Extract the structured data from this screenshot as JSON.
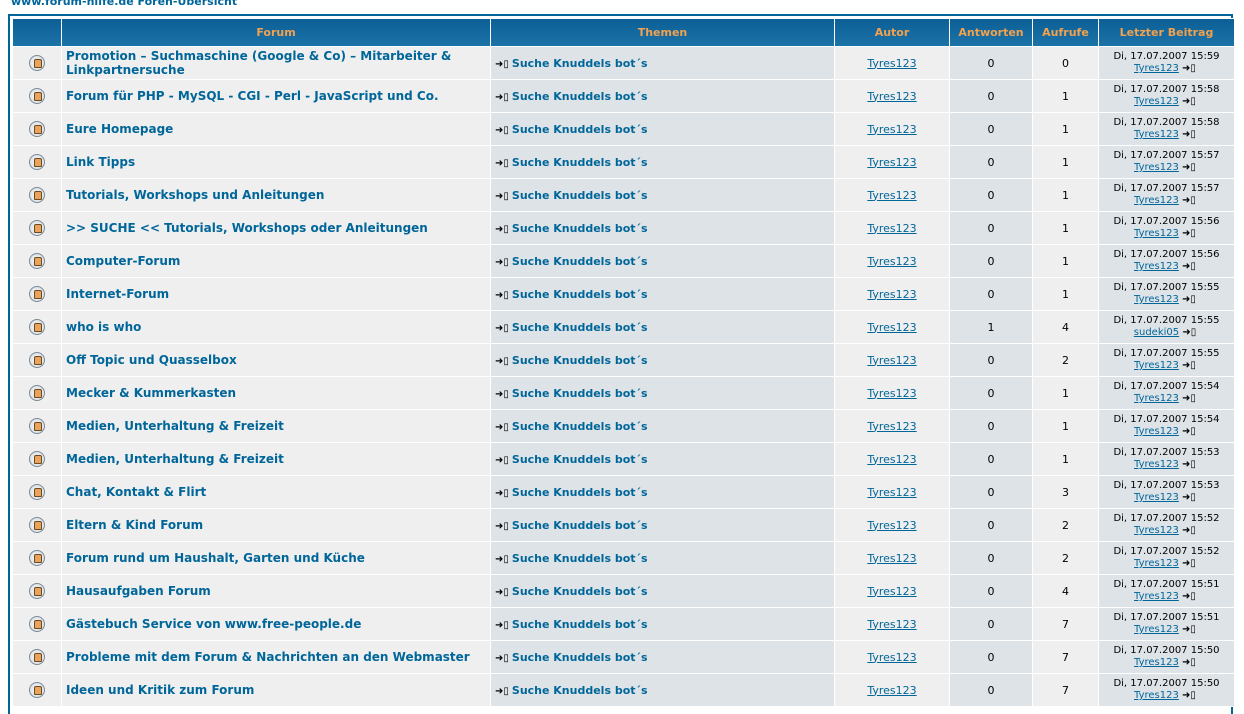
{
  "page_title": "www.forum-hilfe.de Foren-Übersicht",
  "columns": [
    "Forum",
    "Themen",
    "Autor",
    "Antworten",
    "Aufrufe",
    "Letzter Beitrag"
  ],
  "colors": {
    "header": "#0b5f96",
    "header_text": "#f2a24e",
    "link": "#006699",
    "row1": "#efefef",
    "row2": "#dee3e7"
  },
  "icons": {
    "forum": "folder-icon",
    "topic": "arrow-to-post-icon",
    "last": "go-to-last-post-icon"
  },
  "rows": [
    {
      "forum": "Promotion – Suchmaschine (Google & Co) – Mitarbeiter & Linkpartnersuche",
      "topic": "Suche Knuddels bot´s",
      "author": "Tyres123",
      "replies": "0",
      "views": "0",
      "date": "Di, 17.07.2007 15:59",
      "last_user": "Tyres123"
    },
    {
      "forum": "Forum für PHP - MySQL - CGI - Perl - JavaScript und Co.",
      "topic": "Suche Knuddels bot´s",
      "author": "Tyres123",
      "replies": "0",
      "views": "1",
      "date": "Di, 17.07.2007 15:58",
      "last_user": "Tyres123"
    },
    {
      "forum": "Eure Homepage",
      "topic": "Suche Knuddels bot´s",
      "author": "Tyres123",
      "replies": "0",
      "views": "1",
      "date": "Di, 17.07.2007 15:58",
      "last_user": "Tyres123"
    },
    {
      "forum": "Link Tipps",
      "topic": "Suche Knuddels bot´s",
      "author": "Tyres123",
      "replies": "0",
      "views": "1",
      "date": "Di, 17.07.2007 15:57",
      "last_user": "Tyres123"
    },
    {
      "forum": "Tutorials, Workshops und Anleitungen",
      "topic": "Suche Knuddels bot´s",
      "author": "Tyres123",
      "replies": "0",
      "views": "1",
      "date": "Di, 17.07.2007 15:57",
      "last_user": "Tyres123"
    },
    {
      "forum": ">> SUCHE << Tutorials, Workshops oder Anleitungen",
      "topic": "Suche Knuddels bot´s",
      "author": "Tyres123",
      "replies": "0",
      "views": "1",
      "date": "Di, 17.07.2007 15:56",
      "last_user": "Tyres123"
    },
    {
      "forum": "Computer-Forum",
      "topic": "Suche Knuddels bot´s",
      "author": "Tyres123",
      "replies": "0",
      "views": "1",
      "date": "Di, 17.07.2007 15:56",
      "last_user": "Tyres123"
    },
    {
      "forum": "Internet-Forum",
      "topic": "Suche Knuddels bot´s",
      "author": "Tyres123",
      "replies": "0",
      "views": "1",
      "date": "Di, 17.07.2007 15:55",
      "last_user": "Tyres123"
    },
    {
      "forum": "who is who",
      "topic": "Suche Knuddels bot´s",
      "author": "Tyres123",
      "replies": "1",
      "views": "4",
      "date": "Di, 17.07.2007 15:55",
      "last_user": "sudeki05"
    },
    {
      "forum": "Off Topic und Quasselbox",
      "topic": "Suche Knuddels bot´s",
      "author": "Tyres123",
      "replies": "0",
      "views": "2",
      "date": "Di, 17.07.2007 15:55",
      "last_user": "Tyres123"
    },
    {
      "forum": "Mecker & Kummerkasten",
      "topic": "Suche Knuddels bot´s",
      "author": "Tyres123",
      "replies": "0",
      "views": "1",
      "date": "Di, 17.07.2007 15:54",
      "last_user": "Tyres123"
    },
    {
      "forum": "Medien, Unterhaltung & Freizeit",
      "topic": "Suche Knuddels bot´s",
      "author": "Tyres123",
      "replies": "0",
      "views": "1",
      "date": "Di, 17.07.2007 15:54",
      "last_user": "Tyres123"
    },
    {
      "forum": "Medien, Unterhaltung & Freizeit",
      "topic": "Suche Knuddels bot´s",
      "author": "Tyres123",
      "replies": "0",
      "views": "1",
      "date": "Di, 17.07.2007 15:53",
      "last_user": "Tyres123"
    },
    {
      "forum": "Chat, Kontakt & Flirt",
      "topic": "Suche Knuddels bot´s",
      "author": "Tyres123",
      "replies": "0",
      "views": "3",
      "date": "Di, 17.07.2007 15:53",
      "last_user": "Tyres123"
    },
    {
      "forum": "Eltern & Kind Forum",
      "topic": "Suche Knuddels bot´s",
      "author": "Tyres123",
      "replies": "0",
      "views": "2",
      "date": "Di, 17.07.2007 15:52",
      "last_user": "Tyres123"
    },
    {
      "forum": "Forum rund um Haushalt, Garten und Küche",
      "topic": "Suche Knuddels bot´s",
      "author": "Tyres123",
      "replies": "0",
      "views": "2",
      "date": "Di, 17.07.2007 15:52",
      "last_user": "Tyres123"
    },
    {
      "forum": "Hausaufgaben Forum",
      "topic": "Suche Knuddels bot´s",
      "author": "Tyres123",
      "replies": "0",
      "views": "4",
      "date": "Di, 17.07.2007 15:51",
      "last_user": "Tyres123"
    },
    {
      "forum": "Gästebuch Service von www.free-people.de",
      "topic": "Suche Knuddels bot´s",
      "author": "Tyres123",
      "replies": "0",
      "views": "7",
      "date": "Di, 17.07.2007 15:51",
      "last_user": "Tyres123"
    },
    {
      "forum": "Probleme mit dem Forum & Nachrichten an den Webmaster",
      "topic": "Suche Knuddels bot´s",
      "author": "Tyres123",
      "replies": "0",
      "views": "7",
      "date": "Di, 17.07.2007 15:50",
      "last_user": "Tyres123"
    },
    {
      "forum": "Ideen und Kritik zum Forum",
      "topic": "Suche Knuddels bot´s",
      "author": "Tyres123",
      "replies": "0",
      "views": "7",
      "date": "Di, 17.07.2007 15:50",
      "last_user": "Tyres123"
    }
  ]
}
